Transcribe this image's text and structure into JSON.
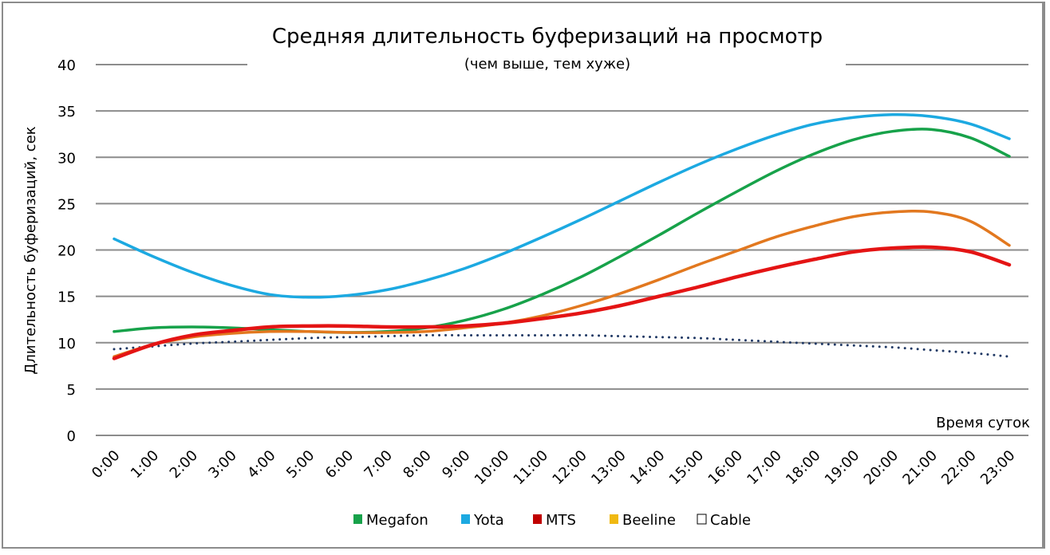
{
  "chart_data": {
    "type": "line",
    "title": "Средняя длительность буферизаций на просмотр",
    "subtitle": "(чем выше, тем хуже)",
    "xlabel": "Время суток",
    "ylabel": "Длительность  буферизаций, сек",
    "ylim": [
      0,
      40
    ],
    "yticks": [
      "0",
      "5",
      "10",
      "15",
      "20",
      "25",
      "30",
      "35",
      "40"
    ],
    "ytick_values": [
      0,
      5,
      10,
      15,
      20,
      25,
      30,
      35,
      40
    ],
    "grid": true,
    "legend_position": "bottom",
    "categories": [
      "0:00",
      "1:00",
      "2:00",
      "3:00",
      "4:00",
      "5:00",
      "6:00",
      "7:00",
      "8:00",
      "9:00",
      "10:00",
      "11:00",
      "12:00",
      "13:00",
      "14:00",
      "15:00",
      "16:00",
      "17:00",
      "18:00",
      "19:00",
      "20:00",
      "21:00",
      "22:00",
      "23:00"
    ],
    "series": [
      {
        "name": "Megafon",
        "legend_color": "#17a24a",
        "line_color": "#17a24a",
        "style": "solid",
        "values": [
          11.2,
          11.6,
          11.7,
          11.6,
          11.4,
          11.2,
          11.1,
          11.2,
          11.6,
          12.4,
          13.6,
          15.2,
          17.1,
          19.3,
          21.6,
          24.0,
          26.3,
          28.5,
          30.4,
          31.9,
          32.8,
          33.0,
          32.1,
          30.1
        ]
      },
      {
        "name": "Yota",
        "legend_color": "#1ca9e1",
        "line_color": "#1ca9e1",
        "style": "solid",
        "values": [
          21.2,
          19.3,
          17.6,
          16.2,
          15.2,
          14.9,
          15.1,
          15.7,
          16.7,
          18.0,
          19.6,
          21.4,
          23.3,
          25.3,
          27.3,
          29.2,
          30.9,
          32.4,
          33.6,
          34.3,
          34.6,
          34.4,
          33.6,
          32.0
        ]
      },
      {
        "name": "MTS",
        "legend_color": "#c00000",
        "line_color": "#e41414",
        "style": "solid",
        "values": [
          8.3,
          9.8,
          10.8,
          11.3,
          11.7,
          11.8,
          11.8,
          11.7,
          11.7,
          11.8,
          12.1,
          12.6,
          13.2,
          14.0,
          15.0,
          16.0,
          17.1,
          18.1,
          19.0,
          19.8,
          20.2,
          20.3,
          19.8,
          18.4
        ]
      },
      {
        "name": "Beeline",
        "legend_color": "#f0b912",
        "line_color": "#e2781f",
        "style": "solid",
        "values": [
          8.5,
          9.8,
          10.6,
          11.0,
          11.2,
          11.2,
          11.1,
          11.1,
          11.2,
          11.6,
          12.1,
          12.9,
          14.0,
          15.3,
          16.8,
          18.4,
          19.9,
          21.4,
          22.6,
          23.6,
          24.1,
          24.1,
          23.1,
          20.5
        ]
      },
      {
        "name": "Cable",
        "legend_color": "#ffffff",
        "line_color": "#1f3864",
        "style": "dotted",
        "values": [
          9.3,
          9.6,
          9.9,
          10.1,
          10.3,
          10.5,
          10.6,
          10.7,
          10.8,
          10.8,
          10.8,
          10.8,
          10.8,
          10.7,
          10.6,
          10.5,
          10.3,
          10.1,
          9.9,
          9.7,
          9.5,
          9.2,
          8.9,
          8.5
        ]
      }
    ]
  }
}
